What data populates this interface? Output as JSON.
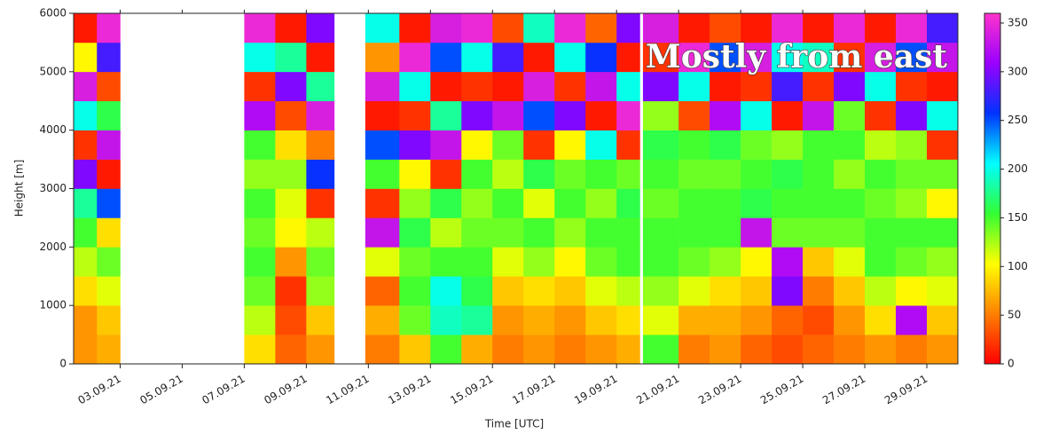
{
  "chart_data": {
    "type": "heatmap",
    "annotation": "Mostly from east",
    "xlabel": "Time [UTC]",
    "ylabel": "Height [m]",
    "xlim": [
      1.5,
      30
    ],
    "xticks": [
      {
        "value": 3,
        "label": "03.09.21"
      },
      {
        "value": 5,
        "label": "05.09.21"
      },
      {
        "value": 7,
        "label": "07.09.21"
      },
      {
        "value": 9,
        "label": "09.09.21"
      },
      {
        "value": 11,
        "label": "11.09.21"
      },
      {
        "value": 13,
        "label": "13.09.21"
      },
      {
        "value": 15,
        "label": "15.09.21"
      },
      {
        "value": 17,
        "label": "17.09.21"
      },
      {
        "value": 19,
        "label": "19.09.21"
      },
      {
        "value": 21,
        "label": "21.09.21"
      },
      {
        "value": 23,
        "label": "23.09.21"
      },
      {
        "value": 25,
        "label": "25.09.21"
      },
      {
        "value": 27,
        "label": "27.09.21"
      },
      {
        "value": 29,
        "label": "29.09.21"
      }
    ],
    "ylim": [
      0,
      6000
    ],
    "yticks": [
      0,
      1000,
      2000,
      3000,
      4000,
      5000,
      6000
    ],
    "zlim": [
      0,
      360
    ],
    "zticks": [
      0,
      50,
      100,
      150,
      200,
      250,
      300,
      350
    ],
    "colormap": [
      "#ff0000",
      "#ff8000",
      "#ffff00",
      "#33ff33",
      "#00ffff",
      "#0033ff",
      "#9900ff",
      "#ff33cc"
    ],
    "xbins": [
      1.5,
      2.25,
      3,
      7,
      8,
      9,
      9.9,
      10.9,
      12,
      13,
      14,
      15,
      16,
      17,
      18,
      19,
      19.75,
      19.85,
      21,
      22,
      23,
      24,
      25,
      26,
      27,
      28,
      29,
      30
    ],
    "ybins": [
      0,
      500,
      1000,
      1500,
      2000,
      2500,
      3000,
      3500,
      4000,
      4500,
      5000,
      5500,
      6000
    ],
    "z": [
      [
        60,
        60,
        90,
        120,
        150,
        180,
        300,
        20,
        200,
        340,
        100,
        10
      ],
      [
        70,
        80,
        110,
        140,
        90,
        250,
        10,
        330,
        160,
        30,
        280,
        350
      ],
      null,
      [
        90,
        120,
        140,
        150,
        140,
        150,
        130,
        150,
        320,
        20,
        200,
        350
      ],
      [
        40,
        30,
        20,
        60,
        100,
        110,
        130,
        90,
        30,
        300,
        180,
        10
      ],
      [
        60,
        80,
        130,
        140,
        120,
        20,
        260,
        50,
        340,
        180,
        10,
        300
      ],
      null,
      [
        50,
        70,
        40,
        110,
        330,
        20,
        150,
        250,
        10,
        340,
        60,
        200
      ],
      [
        80,
        140,
        150,
        140,
        160,
        130,
        100,
        300,
        20,
        200,
        350,
        10
      ],
      [
        150,
        190,
        200,
        150,
        120,
        160,
        20,
        330,
        180,
        10,
        250,
        340
      ],
      [
        70,
        180,
        160,
        150,
        140,
        130,
        150,
        100,
        300,
        20,
        200,
        350
      ],
      [
        50,
        60,
        80,
        110,
        140,
        150,
        120,
        140,
        330,
        10,
        280,
        30
      ],
      [
        60,
        70,
        90,
        130,
        150,
        110,
        160,
        20,
        250,
        340,
        10,
        190
      ],
      [
        50,
        60,
        80,
        100,
        130,
        150,
        140,
        100,
        300,
        20,
        200,
        350
      ],
      [
        60,
        80,
        110,
        140,
        150,
        130,
        150,
        200,
        10,
        330,
        260,
        40
      ],
      [
        70,
        90,
        120,
        150,
        150,
        160,
        140,
        20,
        350,
        200,
        10,
        300
      ],
      null,
      [
        150,
        110,
        130,
        150,
        150,
        140,
        150,
        160,
        130,
        300,
        20,
        340
      ],
      [
        50,
        70,
        110,
        140,
        150,
        150,
        140,
        150,
        30,
        200,
        350,
        10
      ],
      [
        60,
        70,
        90,
        130,
        150,
        150,
        140,
        160,
        320,
        10,
        250,
        30
      ],
      [
        40,
        60,
        80,
        100,
        330,
        160,
        150,
        140,
        200,
        20,
        340,
        10
      ],
      [
        30,
        40,
        300,
        320,
        140,
        150,
        160,
        130,
        10,
        280,
        200,
        350
      ],
      [
        40,
        30,
        50,
        80,
        140,
        150,
        150,
        150,
        330,
        20,
        190,
        10
      ],
      [
        50,
        60,
        80,
        110,
        140,
        150,
        130,
        150,
        140,
        300,
        20,
        350
      ],
      [
        60,
        90,
        120,
        150,
        150,
        140,
        150,
        120,
        20,
        200,
        340,
        10
      ],
      [
        50,
        320,
        100,
        140,
        150,
        130,
        140,
        130,
        300,
        20,
        250,
        350
      ],
      [
        60,
        80,
        110,
        130,
        150,
        100,
        140,
        20,
        200,
        10,
        330,
        280
      ]
    ]
  }
}
